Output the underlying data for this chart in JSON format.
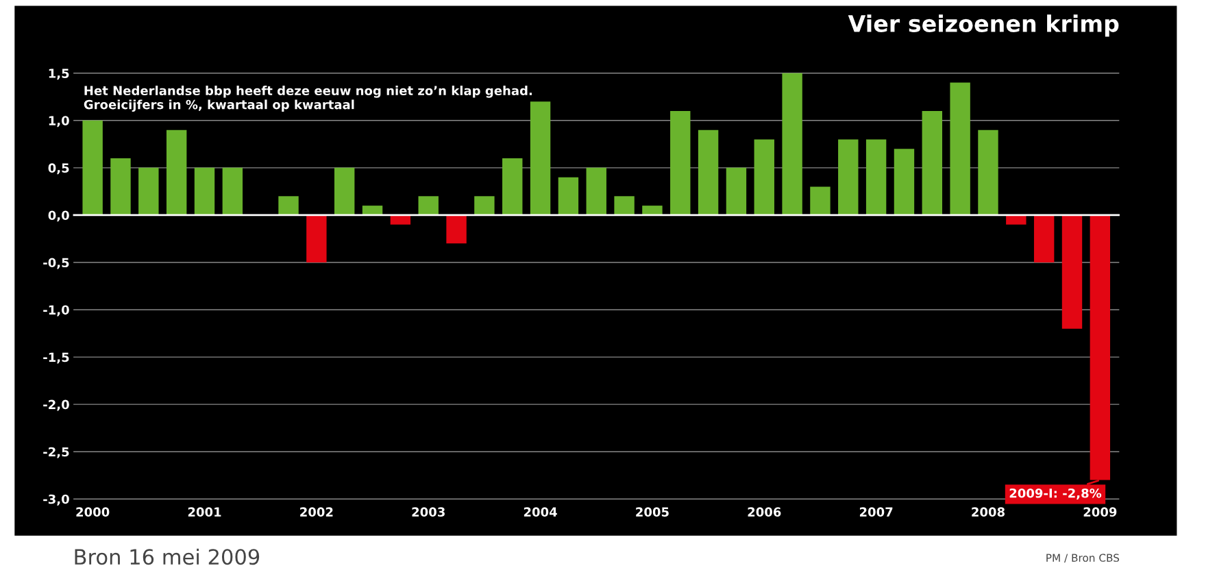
{
  "chart_data": {
    "type": "bar",
    "title": "Vier seizoenen krimp",
    "subtitle": "Het Nederlandse bbp heeft deze eeuw nog niet zo’n klap gehad.\nGroeicijfers in %, kwartaal op kwartaal",
    "categories": [
      "2000",
      null,
      null,
      null,
      "2001",
      null,
      null,
      null,
      "2002",
      null,
      null,
      null,
      "2003",
      null,
      null,
      null,
      "2004",
      null,
      null,
      null,
      "2005",
      null,
      null,
      null,
      "2006",
      null,
      null,
      null,
      "2007",
      null,
      null,
      null,
      "2008",
      null,
      null,
      null,
      "2009"
    ],
    "values": [
      1.0,
      0.6,
      0.5,
      0.9,
      0.5,
      0.5,
      0.0,
      0.2,
      -0.5,
      0.5,
      0.1,
      -0.1,
      0.2,
      -0.3,
      0.2,
      0.6,
      1.2,
      0.4,
      0.5,
      0.2,
      0.1,
      1.1,
      0.9,
      0.5,
      0.8,
      1.5,
      0.3,
      0.8,
      0.8,
      0.7,
      1.1,
      1.4,
      0.9,
      -0.1,
      -0.5,
      -1.2,
      -2.8
    ],
    "colors": [
      "#6ab42d",
      "#6ab42d",
      "#6ab42d",
      "#6ab42d",
      "#6ab42d",
      "#6ab42d",
      "#6ab42d",
      "#6ab42d",
      "#e30613",
      "#6ab42d",
      "#6ab42d",
      "#e30613",
      "#6ab42d",
      "#e30613",
      "#6ab42d",
      "#6ab42d",
      "#6ab42d",
      "#6ab42d",
      "#6ab42d",
      "#6ab42d",
      "#6ab42d",
      "#6ab42d",
      "#6ab42d",
      "#6ab42d",
      "#6ab42d",
      "#6ab42d",
      "#6ab42d",
      "#6ab42d",
      "#6ab42d",
      "#6ab42d",
      "#6ab42d",
      "#6ab42d",
      "#6ab42d",
      "#e30613",
      "#e30613",
      "#e30613",
      "#e30613"
    ],
    "ylim": [
      -3.05,
      1.6
    ],
    "yticks": [
      {
        "value": -3.0,
        "label": "-3,0"
      },
      {
        "value": -2.5,
        "label": "-2,5"
      },
      {
        "value": -2.0,
        "label": "-2,0"
      },
      {
        "value": -1.5,
        "label": "-1,5"
      },
      {
        "value": -1.0,
        "label": "-1,0"
      },
      {
        "value": -0.5,
        "label": "-0,5"
      },
      {
        "value": 0.0,
        "label": "0,0"
      },
      {
        "value": 0.5,
        "label": "0,5"
      },
      {
        "value": 1.0,
        "label": "1,0"
      },
      {
        "value": 1.5,
        "label": "1,5"
      }
    ],
    "grid": "y",
    "ref_lines": [
      {
        "axis": "y",
        "value": 0.0,
        "color": "#ffffff"
      }
    ],
    "annotations": [
      {
        "text": "2009-I: -2,8%",
        "x": "2009",
        "y": -2.8
      },
      "Bron 16 mei 2009",
      "PM / Bron CBS"
    ]
  }
}
